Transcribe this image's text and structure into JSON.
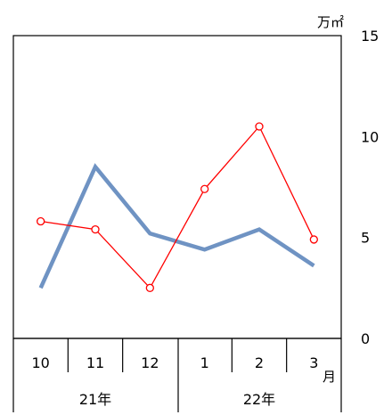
{
  "chart_data": {
    "type": "line",
    "unit_label": "万㎡",
    "x_unit_label": "月",
    "categories": [
      "10",
      "11",
      "12",
      "1",
      "2",
      "3"
    ],
    "year_groups": [
      {
        "label": "21年",
        "months": [
          "10",
          "11",
          "12"
        ]
      },
      {
        "label": "22年",
        "months": [
          "1",
          "2",
          "3"
        ]
      }
    ],
    "ylim": [
      0,
      15
    ],
    "y_ticks": [
      0,
      5,
      10,
      15
    ],
    "y_axis_position": "right",
    "grid": false,
    "series": [
      {
        "values": [
          2.5,
          8.5,
          5.2,
          4.4,
          5.4,
          3.6
        ],
        "color": "#6f93c3",
        "style": "thick-line"
      },
      {
        "values": [
          5.8,
          5.4,
          2.5,
          7.4,
          10.5,
          4.9
        ],
        "color": "#ff0000",
        "style": "line-with-hollow-markers"
      }
    ]
  }
}
